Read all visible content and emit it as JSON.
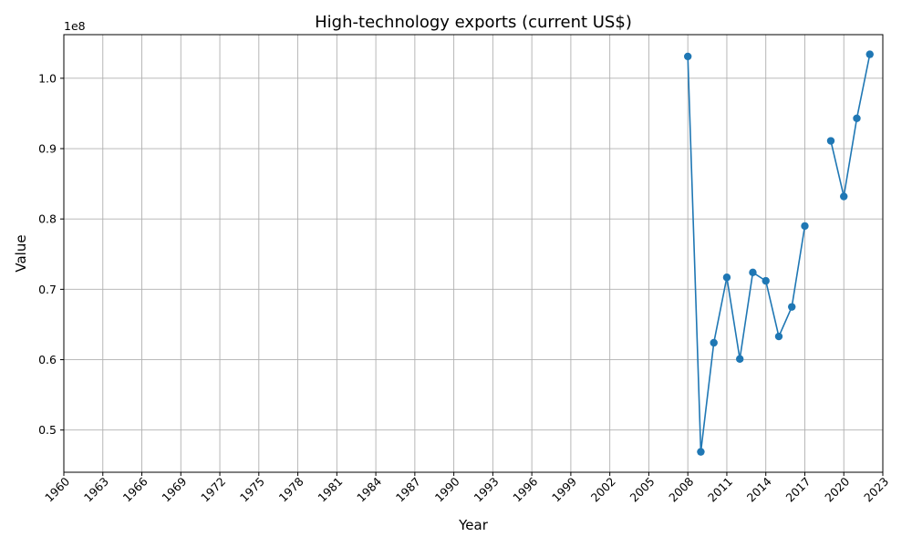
{
  "chart_data": {
    "type": "line",
    "title": "High-technology exports (current US$)",
    "xlabel": "Year",
    "ylabel": "Value",
    "y_offset_label": "1e8",
    "xlim": [
      1960,
      2023
    ],
    "ylim": [
      0.44,
      1.062
    ],
    "x_ticks": [
      1960,
      1963,
      1966,
      1969,
      1972,
      1975,
      1978,
      1981,
      1984,
      1987,
      1990,
      1993,
      1996,
      1999,
      2002,
      2005,
      2008,
      2011,
      2014,
      2017,
      2020,
      2023
    ],
    "y_ticks": [
      0.5,
      0.6,
      0.7,
      0.8,
      0.9,
      1.0
    ],
    "grid": true,
    "series": [
      {
        "color": "#1f77b4",
        "points": [
          {
            "x": 2008,
            "y": 1.031
          },
          {
            "x": 2009,
            "y": 0.469
          },
          {
            "x": 2010,
            "y": 0.624
          },
          {
            "x": 2011,
            "y": 0.717
          },
          {
            "x": 2012,
            "y": 0.601
          },
          {
            "x": 2013,
            "y": 0.724
          },
          {
            "x": 2014,
            "y": 0.712
          },
          {
            "x": 2015,
            "y": 0.633
          },
          {
            "x": 2016,
            "y": 0.675
          },
          {
            "x": 2017,
            "y": 0.79
          },
          {
            "x": 2018,
            "y": null
          },
          {
            "x": 2019,
            "y": 0.911
          },
          {
            "x": 2020,
            "y": 0.832
          },
          {
            "x": 2021,
            "y": 0.943
          },
          {
            "x": 2022,
            "y": 1.034
          }
        ]
      }
    ]
  }
}
